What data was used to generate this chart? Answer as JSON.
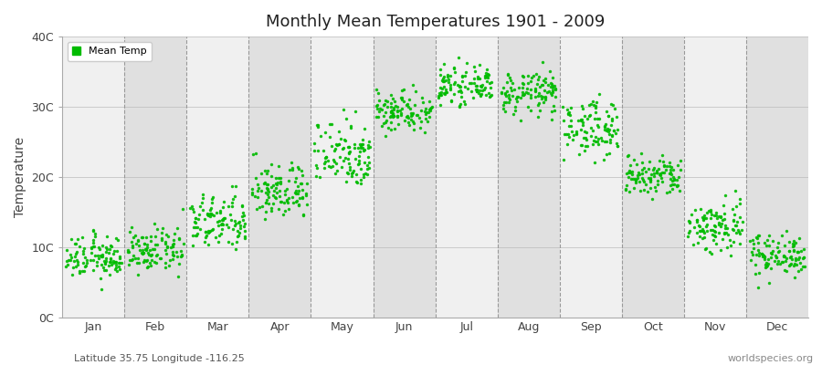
{
  "title": "Monthly Mean Temperatures 1901 - 2009",
  "ylabel": "Temperature",
  "ytick_labels": [
    "0C",
    "10C",
    "20C",
    "30C",
    "40C"
  ],
  "ytick_values": [
    0,
    10,
    20,
    30,
    40
  ],
  "ylim": [
    0,
    40
  ],
  "months": [
    "Jan",
    "Feb",
    "Mar",
    "Apr",
    "May",
    "Jun",
    "Jul",
    "Aug",
    "Sep",
    "Oct",
    "Nov",
    "Dec"
  ],
  "dot_color": "#00BB00",
  "dot_size": 6,
  "bg_color": "#ffffff",
  "band_color_light": "#f0f0f0",
  "band_color_dark": "#e0e0e0",
  "subtitle": "Latitude 35.75 Longitude -116.25",
  "watermark": "worldspecies.org",
  "legend_label": "Mean Temp",
  "monthly_means": [
    8.5,
    9.5,
    13.5,
    18.0,
    23.5,
    29.5,
    33.0,
    32.0,
    27.0,
    20.0,
    13.0,
    9.0
  ],
  "monthly_stds": [
    1.5,
    1.5,
    2.0,
    2.0,
    2.5,
    1.5,
    1.2,
    1.5,
    2.0,
    1.5,
    2.0,
    1.5
  ],
  "n_years": 109
}
